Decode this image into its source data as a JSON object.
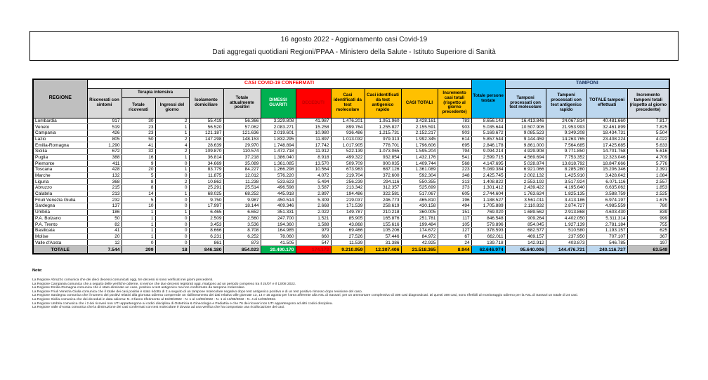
{
  "page": {
    "title_line1": "16 agosto 2022 - Aggiornamento casi Covid-19",
    "title_line2": "Dati aggregati quotidiani Regioni/PPAA - Ministero della Salute - Istituto Superiore di Sanità"
  },
  "table": {
    "group_headers": {
      "casi": "CASI COVID-19 CONFERMATI",
      "terapia": "Terapia intensiva",
      "tamponi": "TAMPONI"
    },
    "columns": [
      "REGIONE",
      "Ricoverati con sintomi",
      "Totale ricoverati",
      "Ingressi del giorno",
      "Isolamento domiciliare",
      "Totale attualmente positivi",
      "DIMESSI GUARITI",
      "DECEDUTI",
      "Casi identificati da test molecolare",
      "Casi identificati da test antigenico rapido",
      "CASI TOTALI",
      "Incremento casi totali (rispetto al giorno precedente)",
      "Totale persone testate",
      "Tamponi processati con test molecolare",
      "Tamponi processati con test antigenico rapido",
      "TOTALE tamponi effettuati",
      "Incremento tamponi totali (rispetto al giorno precedente)"
    ],
    "column_keys": [
      "regione",
      "ricoverati-con-sintomi",
      "terapia-totale-ricoverati",
      "terapia-ingressi-giorno",
      "isolamento-domiciliare",
      "totale-attualmente-positivi",
      "dimessi-guariti",
      "deceduti",
      "casi-test-molecolare",
      "casi-test-antigenico",
      "casi-totali",
      "incremento-casi-totali",
      "totale-persone-testate",
      "tamponi-test-molecolare",
      "tamponi-test-antigenico",
      "totale-tamponi-effettuati",
      "incremento-tamponi-totali"
    ],
    "rows": [
      [
        "Lombardia",
        "917",
        "30",
        "2",
        "55.419",
        "56.366",
        "3.329.808",
        "41.987",
        "1.476.201",
        "1.951.960",
        "3.428.161",
        "783",
        "8.656.143",
        "16.413.846",
        "24.067.814",
        "40.481.660",
        "7.817"
      ],
      [
        "Veneto",
        "519",
        "23",
        "1",
        "56.520",
        "57.062",
        "2.083.271",
        "15.258",
        "899.764",
        "1.255.827",
        "2.155.591",
        "903",
        "5.035.644",
        "10.507.906",
        "21.953.993",
        "32.461.899",
        "7.825"
      ],
      [
        "Campania",
        "426",
        "23",
        "1",
        "121.187",
        "121.636",
        "2.019.601",
        "10.980",
        "936.486",
        "1.215.731",
        "2.152.217",
        "903",
        "5.169.672",
        "9.085.523",
        "9.349.208",
        "18.434.731",
        "5.504"
      ],
      [
        "Lazio",
        "805",
        "50",
        "2",
        "147.298",
        "148.153",
        "1.832.295",
        "11.897",
        "1.013.032",
        "979.313",
        "1.992.345",
        "614",
        "5.857.544",
        "9.144.459",
        "14.263.765",
        "23.408.224",
        "4.022"
      ],
      [
        "Emilia-Romagna",
        "1.290",
        "41",
        "4",
        "28.639",
        "29.970",
        "1.748.894",
        "17.742",
        "1.017.905",
        "778.701",
        "1.796.606",
        "695",
        "2.846.178",
        "9.861.000",
        "7.564.685",
        "17.425.685",
        "5.633"
      ],
      [
        "Sicilia",
        "672",
        "32",
        "2",
        "109.870",
        "110.574",
        "1.472.718",
        "11.912",
        "522.139",
        "1.073.065",
        "1.595.204",
        "794",
        "9.094.214",
        "4.929.908",
        "9.771.850",
        "14.701.758",
        "5.616"
      ],
      [
        "Puglia",
        "388",
        "16",
        "1",
        "36.814",
        "37.218",
        "1.386.040",
        "8.918",
        "499.322",
        "932.854",
        "1.432.176",
        "541",
        "2.599.715",
        "4.569.694",
        "7.753.352",
        "12.323.046",
        "4.709"
      ],
      [
        "Piemonte",
        "411",
        "9",
        "0",
        "34.669",
        "35.089",
        "1.361.085",
        "13.570",
        "509.709",
        "900.035",
        "1.409.744",
        "568",
        "4.147.695",
        "5.028.874",
        "13.818.792",
        "18.847.666",
        "5.776"
      ],
      [
        "Toscana",
        "428",
        "20",
        "1",
        "83.779",
        "84.227",
        "1.266.298",
        "10.564",
        "673.963",
        "687.126",
        "1.361.089",
        "223",
        "5.089.384",
        "6.921.066",
        "8.285.280",
        "15.206.346",
        "2.391"
      ],
      [
        "Marche",
        "132",
        "5",
        "0",
        "11.875",
        "12.012",
        "576.220",
        "4.072",
        "219.704",
        "372.600",
        "592.304",
        "348",
        "2.425.745",
        "2.002.132",
        "1.425.910",
        "3.428.042",
        "1.084"
      ],
      [
        "Liguria",
        "368",
        "8",
        "2",
        "10.862",
        "11.238",
        "533.623",
        "5.494",
        "256.239",
        "294.116",
        "550.355",
        "313",
        "1.408.822",
        "2.553.192",
        "3.517.924",
        "6.071.116",
        "2.557"
      ],
      [
        "Abruzzo",
        "215",
        "8",
        "0",
        "25.291",
        "25.514",
        "496.598",
        "3.587",
        "213.342",
        "312.357",
        "525.699",
        "373",
        "1.301.412",
        "2.439.422",
        "4.195.640",
        "6.635.062",
        "1.853"
      ],
      [
        "Calabria",
        "213",
        "14",
        "1",
        "68.025",
        "68.252",
        "445.918",
        "2.897",
        "194.486",
        "322.581",
        "517.067",
        "605",
        "2.744.604",
        "1.763.624",
        "1.825.135",
        "3.588.759",
        "2.525"
      ],
      [
        "Friuli Venezia Giulia",
        "232",
        "5",
        "0",
        "9.750",
        "9.987",
        "450.514",
        "5.309",
        "219.037",
        "246.773",
        "465.810",
        "196",
        "1.188.527",
        "3.561.011",
        "3.413.186",
        "6.974.197",
        "1.675"
      ],
      [
        "Sardegna",
        "137",
        "10",
        "0",
        "17.997",
        "18.144",
        "409.346",
        "2.668",
        "171.539",
        "258.619",
        "430.158",
        "494",
        "1.705.889",
        "2.110.832",
        "2.874.727",
        "4.985.559",
        "780"
      ],
      [
        "Umbria",
        "186",
        "1",
        "1",
        "6.465",
        "6.652",
        "351.331",
        "2.022",
        "149.787",
        "210.218",
        "360.005",
        "151",
        "769.020",
        "1.689.562",
        "2.913.868",
        "4.603.430",
        "839"
      ],
      [
        "P.A. Bolzano",
        "50",
        "1",
        "0",
        "2.509",
        "2.560",
        "247.700",
        "1.521",
        "85.905",
        "165.876",
        "251.781",
        "117",
        "846.548",
        "909.264",
        "4.402.050",
        "5.311.314",
        "999"
      ],
      [
        "P.A. Trento",
        "82",
        "1",
        "0",
        "3.453",
        "3.536",
        "194.360",
        "1.588",
        "43.868",
        "155.616",
        "199.484",
        "105",
        "579.896",
        "854.045",
        "1.927.139",
        "2.781.184",
        "755"
      ],
      [
        "Basilicata",
        "41",
        "1",
        "0",
        "8.666",
        "8.708",
        "164.985",
        "979",
        "69.466",
        "105.206",
        "174.672",
        "127",
        "378.593",
        "682.577",
        "510.580",
        "1.193.157",
        "625"
      ],
      [
        "Molise",
        "20",
        "1",
        "0",
        "6.231",
        "6.252",
        "78.060",
        "660",
        "27.526",
        "57.446",
        "84.972",
        "67",
        "662.011",
        "469.157",
        "237.950",
        "707.107",
        "367"
      ],
      [
        "Valle d'Aosta",
        "12",
        "0",
        "0",
        "861",
        "873",
        "41.505",
        "547",
        "11.539",
        "31.386",
        "42.925",
        "24",
        "139.718",
        "142.912",
        "403.873",
        "546.785",
        "197"
      ]
    ],
    "total_row": [
      "TOTALE",
      "7.544",
      "299",
      "18",
      "846.180",
      "854.023",
      "20.490.170",
      "174.172",
      "9.210.959",
      "12.307.406",
      "21.518.365",
      "8.944",
      "62.646.974",
      "95.640.006",
      "144.476.721",
      "240.116.727",
      "63.549"
    ]
  },
  "notes": {
    "heading": "Note:",
    "items": [
      "La Regione Abruzzo comunica che dei dieci decessi comunicati oggi, tre decessi si sono verificati nei giorni precedenti.",
      "La Regione Campania comunica che a seguito delle verifiche odierne, si evince che due decessi registrati oggi, risalgono ad un periodo compreso tra il 24/07 e il 13/08 2022.",
      "La Regione Emilia-Romagna comunica che è stato eliminato un caso, positivo a test antigenico ma non confermato da tampone molecolare.",
      "La Regione Friuli Venezia Giulia comunica che il totale dei casi positivi è stato ridotto di 2 a seguito di un tampone molecolare negativo dopo test antigenico positivo e di un test positivo rimosso dopo revisione del caso.",
      "La Regione Sardegna comunica che il numero dei positivi relativi alla giornata odierna comprende un riallineamento dei dati relativo alle giornate 13, 14 e 15 agosto per l'area afferente alla ASL di Sassari, per un ammontare complessivo di 308 casi diagnosticati. Di questi 308 casi, sono riferibili al monitoraggio odierno per la ASL di Sassari un totale di 24 casi.",
      "La Regione Sicilia comunica che dei deceduti in data odierna: N. 3 fanno riferimento al 15/08/2022 - N. 1 al 14/08/2022 - N. 1 al 13/08/2022 - N. 4 al 12/08/2022.",
      "La Regione Umbria comunica che i 2 dei ricoveri non UTI appartengono ai codici disciplina di Ostetricia & Ginecologia e Pediatria e che 76 dei ricoveri non UTI appartengono ad altri codici disciplina.",
      "La Regione Valle d'Aosta comunica che la diminuzione dei casi confermati con test molecolare è dovuta ad una verifica che ha comportato una ricollocazione dei casi."
    ]
  },
  "colors": {
    "green": "#00B050",
    "red": "#FF0000",
    "red_text": "#C00000",
    "yellow": "#FFC000",
    "cyan": "#00B0F0",
    "light_blue": "#BDD7EE",
    "header_gray": "#BFBFBF",
    "light_gray": "#D9D9D9",
    "gray_blue": "#D6DCE4",
    "title_red": "#FF0000"
  }
}
